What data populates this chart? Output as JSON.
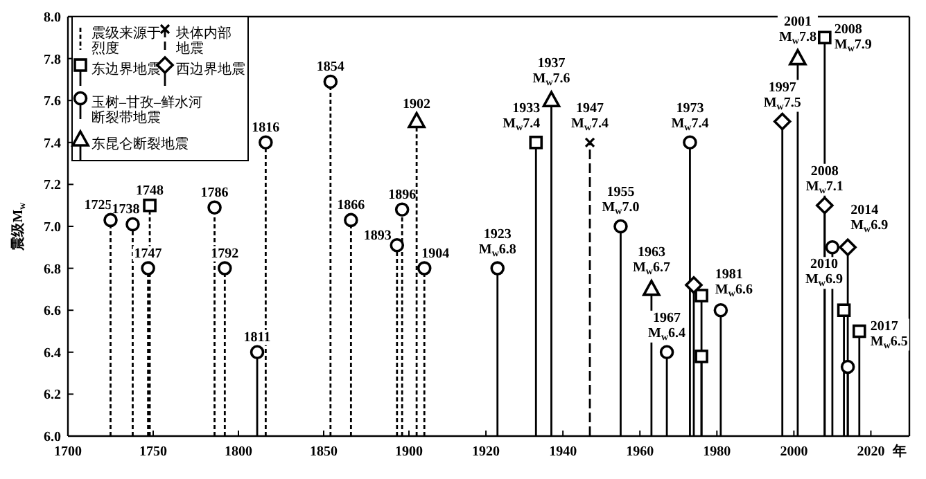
{
  "chart_data": [
    {
      "type": "lollipop",
      "ylabel": "震级M$_{w}$",
      "legend": "top left",
      "grid": false,
      "xlim": [
        1700,
        1900
      ],
      "xticks": [
        1700,
        1750,
        1800,
        1850,
        1900
      ],
      "ylim": [
        6.0,
        8.0
      ],
      "yticks": [
        {
          "value": 6.0,
          "label": "6.0"
        },
        {
          "value": 6.2,
          "label": "6.2"
        },
        {
          "value": 6.4,
          "label": "6.4"
        },
        {
          "value": 6.6,
          "label": "6.6"
        },
        {
          "value": 6.8,
          "label": "6.8"
        },
        {
          "value": 7.0,
          "label": "7.0"
        },
        {
          "value": 7.2,
          "label": "7.2"
        },
        {
          "value": 7.4,
          "label": "7.4"
        },
        {
          "value": 7.6,
          "label": "7.6"
        },
        {
          "value": 7.8,
          "label": "7.8"
        },
        {
          "value": 8.0,
          "label": "8.0"
        }
      ],
      "series": [
        {
          "name": "震级来源于烈度",
          "color": "#000000",
          "marker": "circle",
          "line_style": "dotted",
          "x": [
            1725,
            1738,
            1747,
            1786,
            1792,
            1816,
            1854,
            1866,
            1893,
            1896
          ],
          "values": [
            7.03,
            7.01,
            6.8,
            7.09,
            6.8,
            7.4,
            7.69,
            7.03,
            6.91,
            7.08
          ]
        },
        {
          "color": "#000000",
          "marker": "square",
          "line_style": "dotted",
          "x": [
            1748
          ],
          "values": [
            7.1
          ]
        },
        {
          "color": "#000000",
          "marker": "circle",
          "line_style": "solid",
          "x": [
            1811
          ],
          "values": [
            6.4
          ]
        }
      ],
      "annotations": [
        {
          "text": "1725",
          "x": 1725,
          "y": 7.03
        },
        {
          "text": "1738",
          "x": 1738,
          "y": 7.01
        },
        {
          "text": "1747",
          "x": 1747,
          "y": 6.8
        },
        {
          "text": "1748",
          "x": 1748,
          "y": 7.1
        },
        {
          "text": "1786",
          "x": 1786,
          "y": 7.09
        },
        {
          "text": "1792",
          "x": 1792,
          "y": 6.8
        },
        {
          "text": "1811",
          "x": 1811,
          "y": 6.4
        },
        {
          "text": "1816",
          "x": 1816,
          "y": 7.4
        },
        {
          "text": "1854",
          "x": 1854,
          "y": 7.69
        },
        {
          "text": "1866",
          "x": 1866,
          "y": 7.03
        },
        {
          "text": "1893",
          "x": 1893,
          "y": 6.91
        },
        {
          "text": "1896",
          "x": 1896,
          "y": 7.08
        }
      ]
    },
    {
      "type": "lollipop",
      "xlabel": "年",
      "tick_labels": "x",
      "grid": false,
      "legend": "top left",
      "xlim": [
        1900,
        2030
      ],
      "xticks": [
        1920,
        1940,
        1960,
        1980,
        2000,
        2020
      ],
      "ylim": [
        6.0,
        8.0
      ],
      "series": [
        {
          "name": "块体内部地震",
          "color": "#000000",
          "marker": "cross",
          "line_style": "dashed",
          "x": [
            1947
          ],
          "values": [
            7.4
          ]
        },
        {
          "name": "东边界地震",
          "color": "#000000",
          "marker": "square",
          "line_style": "solid",
          "x": [
            1933,
            1976,
            1976,
            2008,
            2013,
            2017
          ],
          "values": [
            7.4,
            6.67,
            6.38,
            7.9,
            6.6,
            6.5
          ]
        },
        {
          "name": "西边界地震",
          "color": "#000000",
          "marker": "diamond",
          "line_style": "solid",
          "x": [
            1974,
            1997,
            2008,
            2014
          ],
          "values": [
            6.72,
            7.5,
            7.1,
            6.9
          ]
        },
        {
          "name": "玉树–甘孜–鲜水河断裂带地震",
          "color": "#000000",
          "marker": "circle",
          "line_style": "solid",
          "x": [
            1923,
            1955,
            1967,
            1973,
            1981,
            2010,
            2014
          ],
          "values": [
            6.8,
            7.0,
            6.4,
            7.4,
            6.6,
            6.9,
            6.33
          ]
        },
        {
          "name": "东昆仑断裂地震",
          "color": "#000000",
          "marker": "triangle",
          "line_style": "solid",
          "x": [
            1937,
            1963,
            2001
          ],
          "values": [
            7.6,
            6.7,
            7.8
          ]
        },
        {
          "color": "#000000",
          "marker": "triangle",
          "line_style": "dotted",
          "x": [
            1902
          ],
          "values": [
            7.5
          ]
        },
        {
          "color": "#000000",
          "marker": "circle",
          "line_style": "dotted",
          "x": [
            1904
          ],
          "values": [
            6.8
          ]
        }
      ],
      "annotations": [
        {
          "text": "1902",
          "x": 1902,
          "y": 7.5
        },
        {
          "text": "1904",
          "x": 1904,
          "y": 6.8
        },
        {
          "text": "1923\nM$_{w}$6.8",
          "x": 1923,
          "y": 6.8
        },
        {
          "text": "1933\nM$_{w}$7.4",
          "x": 1933,
          "y": 7.4
        },
        {
          "text": "1937\nM$_{w}$7.6",
          "x": 1937,
          "y": 7.6
        },
        {
          "text": "1947\nM$_{w}$7.4",
          "x": 1947,
          "y": 7.4
        },
        {
          "text": "1955\nM$_{w}$7.0",
          "x": 1955,
          "y": 7.0
        },
        {
          "text": "1963\nM$_{w}$6.7",
          "x": 1963,
          "y": 6.7
        },
        {
          "text": "1967\nM$_{w}$6.4",
          "x": 1967,
          "y": 6.4
        },
        {
          "text": "1973\nM$_{w}$7.4",
          "x": 1973,
          "y": 7.4
        },
        {
          "text": "1981\nM$_{w}$6.6",
          "x": 1981,
          "y": 6.6
        },
        {
          "text": "1997\nM$_{w}$7.5",
          "x": 1997,
          "y": 7.5
        },
        {
          "text": "2001\nM$_{w}$7.8",
          "x": 2001,
          "y": 7.8
        },
        {
          "text": "2008\nM$_{w}$7.9",
          "x": 2008,
          "y": 7.9
        },
        {
          "text": "2008\nM$_{w}$7.1",
          "x": 2008,
          "y": 7.1
        },
        {
          "text": "2010\nM$_{w}$6.9",
          "x": 2010,
          "y": 6.9
        },
        {
          "text": "2014\nM$_{w}$6.9",
          "x": 2014,
          "y": 6.9
        },
        {
          "text": "2017\nM$_{w}$6.5",
          "x": 2017,
          "y": 6.5
        }
      ]
    }
  ]
}
